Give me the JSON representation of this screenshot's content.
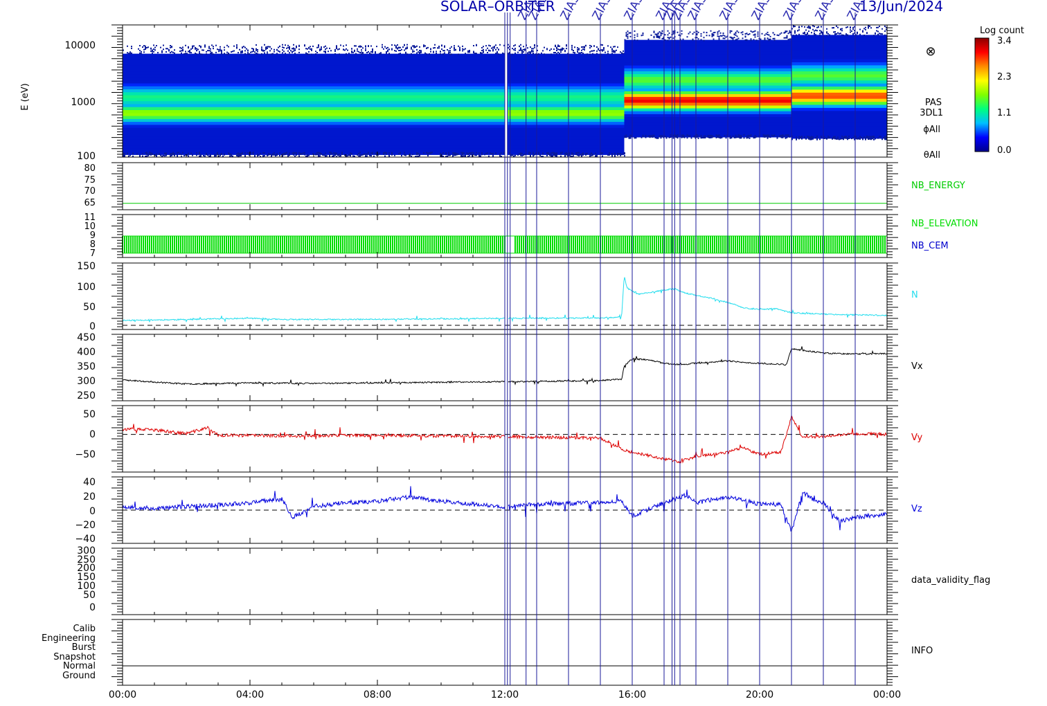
{
  "header": {
    "mission_fragment": "SOLAR–ORBITER",
    "date_fragment": "13/Jun/2024",
    "event_label": "ZIAS"
  },
  "colorbar": {
    "title": "Log count",
    "ticks": [
      "3.4",
      "2.3",
      "1.1",
      "0.0"
    ],
    "colors": [
      "#8b0000",
      "#ff0000",
      "#ff8c00",
      "#ffff00",
      "#7fff00",
      "#00ff7f",
      "#00bfff",
      "#0000ff",
      "#00008b"
    ]
  },
  "events": [
    "12:00",
    "12:05",
    "12:10",
    "12:40",
    "13:00",
    "14:00",
    "15:00",
    "16:00",
    "17:00",
    "17:15",
    "17:20",
    "17:30",
    "18:00",
    "19:00",
    "20:00",
    "21:00",
    "22:00",
    "23:00"
  ],
  "events_labeled": [
    "12:40",
    "13:00",
    "14:00",
    "15:00",
    "16:00",
    "17:00",
    "17:15",
    "17:30",
    "18:00",
    "19:00",
    "20:00",
    "21:00",
    "22:00",
    "23:00"
  ],
  "x_axis": {
    "tick_labels": [
      "00:00",
      "04:00",
      "08:00",
      "12:00",
      "16:00",
      "20:00",
      "00:00"
    ]
  },
  "panels": {
    "spectrogram": {
      "ylabel": "E (eV)",
      "tick_labels": [
        "10000",
        "1000",
        "100"
      ],
      "side_labels": [
        "PAS",
        "3DL1",
        "ϕAll",
        "θAll"
      ],
      "marker": "circled-x-icon"
    },
    "nb_energy": {
      "label": "NB_ENERGY",
      "tick_labels": [
        "80",
        "75",
        "70",
        "65"
      ],
      "color": "#00cc00"
    },
    "nb_elevation": {
      "label": "NB_ELEVATION",
      "label2": "NB_CEM",
      "tick_labels": [
        "11",
        "10",
        "9",
        "8",
        "7"
      ],
      "color": "#00dd00",
      "color2": "#0000cc"
    },
    "density": {
      "label": "N",
      "tick_labels": [
        "150",
        "100",
        "50",
        "0"
      ],
      "color": "#22ddee"
    },
    "vx": {
      "label": "Vx",
      "tick_labels": [
        "450",
        "400",
        "350",
        "300",
        "250"
      ],
      "color": "#000000"
    },
    "vy": {
      "label": "Vy",
      "tick_labels": [
        "50",
        "0",
        "−50"
      ],
      "color": "#dd0000"
    },
    "vz": {
      "label": "Vz",
      "tick_labels": [
        "40",
        "20",
        "0",
        "−20",
        "−40"
      ],
      "color": "#0000dd"
    },
    "validity": {
      "label": "data_validity_flag",
      "tick_labels": [
        "300",
        "250",
        "200",
        "150",
        "100",
        "50",
        "0"
      ]
    },
    "info": {
      "label": "INFO",
      "tick_labels": [
        "Calib",
        "Engineering",
        "Burst",
        "Snapshot",
        "Normal",
        "Ground"
      ]
    }
  },
  "chart_data": [
    {
      "type": "heatmap",
      "ylabel": "E (eV)",
      "y_scale": "log",
      "ylim": [
        100,
        13000
      ],
      "xlim": [
        "00:00",
        "24:00"
      ],
      "colorbar_label": "Log count",
      "clim": [
        0.0,
        3.4
      ],
      "segments": [
        {
          "start": "00:00",
          "end": "15:45",
          "emin": 110,
          "emax": 4500,
          "peak_energy": 500,
          "peak_value": 2.0,
          "secondary_energy": 900,
          "secondary_value": 1.6
        },
        {
          "start": "15:45",
          "end": "21:00",
          "emin": 210,
          "emax": 7500,
          "peak_energy": 800,
          "peak_value": 3.1,
          "secondary_energy": 1700,
          "secondary_value": 1.8
        },
        {
          "start": "21:00",
          "end": "24:00",
          "emin": 200,
          "emax": 9000,
          "peak_energy": 950,
          "peak_value": 2.9,
          "secondary_energy": 2000,
          "secondary_value": 1.8
        }
      ]
    },
    {
      "type": "line",
      "series": [
        {
          "name": "NB_ENERGY",
          "x": [
            "00:00",
            "24:00"
          ],
          "values": [
            63,
            63
          ]
        }
      ],
      "ylim": [
        60,
        82
      ]
    },
    {
      "type": "bar",
      "series": [
        {
          "name": "NB_ELEVATION",
          "range": [
            7,
            9
          ]
        }
      ],
      "ylim": [
        6.5,
        11.5
      ]
    },
    {
      "type": "line",
      "series": [
        {
          "name": "N",
          "x": [
            "00:00",
            "02:00",
            "04:00",
            "05:00",
            "07:00",
            "09:00",
            "11:00",
            "12:00",
            "13:00",
            "15:00",
            "15:40",
            "15:45",
            "15:50",
            "16:10",
            "16:30",
            "17:00",
            "17:20",
            "17:40",
            "18:00",
            "18:30",
            "19:00",
            "19:30",
            "20:00",
            "20:30",
            "21:00",
            "22:00",
            "23:00",
            "24:00"
          ],
          "values": [
            12,
            14,
            17,
            14,
            14,
            15,
            16,
            17,
            17,
            18,
            20,
            120,
            90,
            75,
            78,
            85,
            88,
            78,
            72,
            65,
            55,
            42,
            38,
            40,
            30,
            27,
            25,
            24
          ]
        }
      ],
      "ylim": [
        -10,
        150
      ]
    },
    {
      "type": "line",
      "series": [
        {
          "name": "Vx",
          "x": [
            "00:00",
            "02:00",
            "04:00",
            "06:00",
            "08:00",
            "10:00",
            "12:00",
            "13:00",
            "15:00",
            "15:40",
            "15:45",
            "16:00",
            "16:30",
            "17:00",
            "17:30",
            "18:00",
            "19:00",
            "19:30",
            "20:00",
            "20:50",
            "21:00",
            "22:00",
            "23:00",
            "24:00"
          ],
          "values": [
            302,
            288,
            292,
            290,
            292,
            294,
            296,
            297,
            300,
            305,
            350,
            375,
            372,
            360,
            355,
            360,
            368,
            362,
            360,
            355,
            410,
            395,
            392,
            393
          ]
        }
      ],
      "ylim": [
        230,
        460
      ]
    },
    {
      "type": "line",
      "series": [
        {
          "name": "Vy",
          "x": [
            "00:00",
            "01:00",
            "02:00",
            "02:40",
            "03:00",
            "05:00",
            "08:00",
            "12:00",
            "13:00",
            "15:00",
            "15:45",
            "16:00",
            "17:00",
            "17:30",
            "18:00",
            "19:00",
            "19:30",
            "20:00",
            "20:40",
            "21:00",
            "21:20",
            "22:00",
            "23:00",
            "24:00"
          ],
          "values": [
            12,
            10,
            2,
            15,
            -2,
            -3,
            -2,
            -5,
            -6,
            -8,
            -35,
            -40,
            -55,
            -62,
            -50,
            -40,
            -30,
            -45,
            -40,
            40,
            -5,
            -5,
            2,
            0
          ]
        }
      ],
      "ylim": [
        -85,
        65
      ]
    },
    {
      "type": "line",
      "series": [
        {
          "name": "Vz",
          "x": [
            "00:00",
            "01:00",
            "02:00",
            "03:00",
            "04:00",
            "05:00",
            "05:20",
            "06:00",
            "07:00",
            "08:00",
            "09:00",
            "10:00",
            "11:00",
            "12:00",
            "13:00",
            "15:00",
            "15:40",
            "16:00",
            "17:00",
            "17:40",
            "18:00",
            "19:00",
            "20:00",
            "20:40",
            "21:00",
            "21:20",
            "21:40",
            "22:00",
            "22:30",
            "23:00",
            "24:00"
          ],
          "values": [
            5,
            2,
            5,
            7,
            10,
            15,
            -10,
            5,
            10,
            12,
            18,
            12,
            8,
            4,
            8,
            10,
            12,
            -8,
            10,
            20,
            10,
            18,
            8,
            8,
            -30,
            25,
            15,
            10,
            -15,
            -10,
            -5
          ]
        }
      ],
      "ylim": [
        -45,
        45
      ]
    }
  ]
}
